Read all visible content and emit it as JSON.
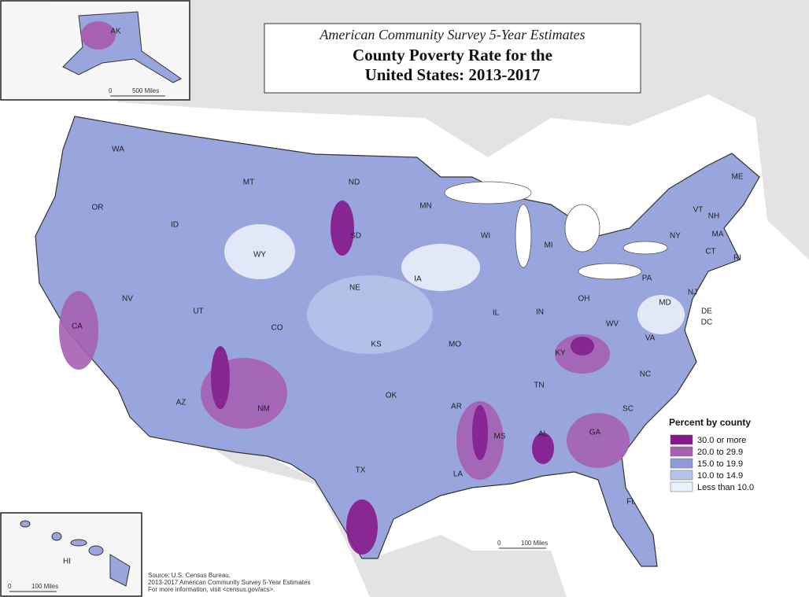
{
  "header": {
    "subtitle": "American Community Survey 5-Year Estimates",
    "title_lines": [
      "County Poverty Rate for the",
      "United States: 2013-2017"
    ]
  },
  "state_labels": [
    "AK",
    "WA",
    "MT",
    "ND",
    "MN",
    "ME",
    "OR",
    "ID",
    "SD",
    "WI",
    "VT",
    "NH",
    "NY",
    "MA",
    "CT",
    "RI",
    "WY",
    "MI",
    "IA",
    "NE",
    "PA",
    "NJ",
    "OH",
    "MD",
    "DE",
    "DC",
    "NV",
    "UT",
    "CO",
    "IL",
    "IN",
    "WV",
    "CA",
    "KS",
    "MO",
    "KY",
    "VA",
    "TN",
    "NC",
    "OK",
    "AR",
    "AZ",
    "NM",
    "SC",
    "MS",
    "AL",
    "GA",
    "TX",
    "LA",
    "FL",
    "HI"
  ],
  "legend": {
    "title": "Percent by county",
    "items": [
      {
        "label": "30.0 or more",
        "color": "#86198a"
      },
      {
        "label": "20.0 to 29.9",
        "color": "#a661b3"
      },
      {
        "label": "15.0 to 19.9",
        "color": "#8e9bd8"
      },
      {
        "label": "10.0 to 14.9",
        "color": "#b5c4ea"
      },
      {
        "label": "Less than 10.0",
        "color": "#e9f1fb"
      }
    ]
  },
  "scale_bars": [
    {
      "zero": "0",
      "label": "500 Miles"
    },
    {
      "zero": "0",
      "label": "100 Miles"
    },
    {
      "zero": "0",
      "label": "100 Miles"
    }
  ],
  "source": [
    "Source: U.S. Census Bureau,",
    "2013-2017 American Community Survey 5-Year Estimates",
    "For more information, visit <census.gov/acs>."
  ]
}
